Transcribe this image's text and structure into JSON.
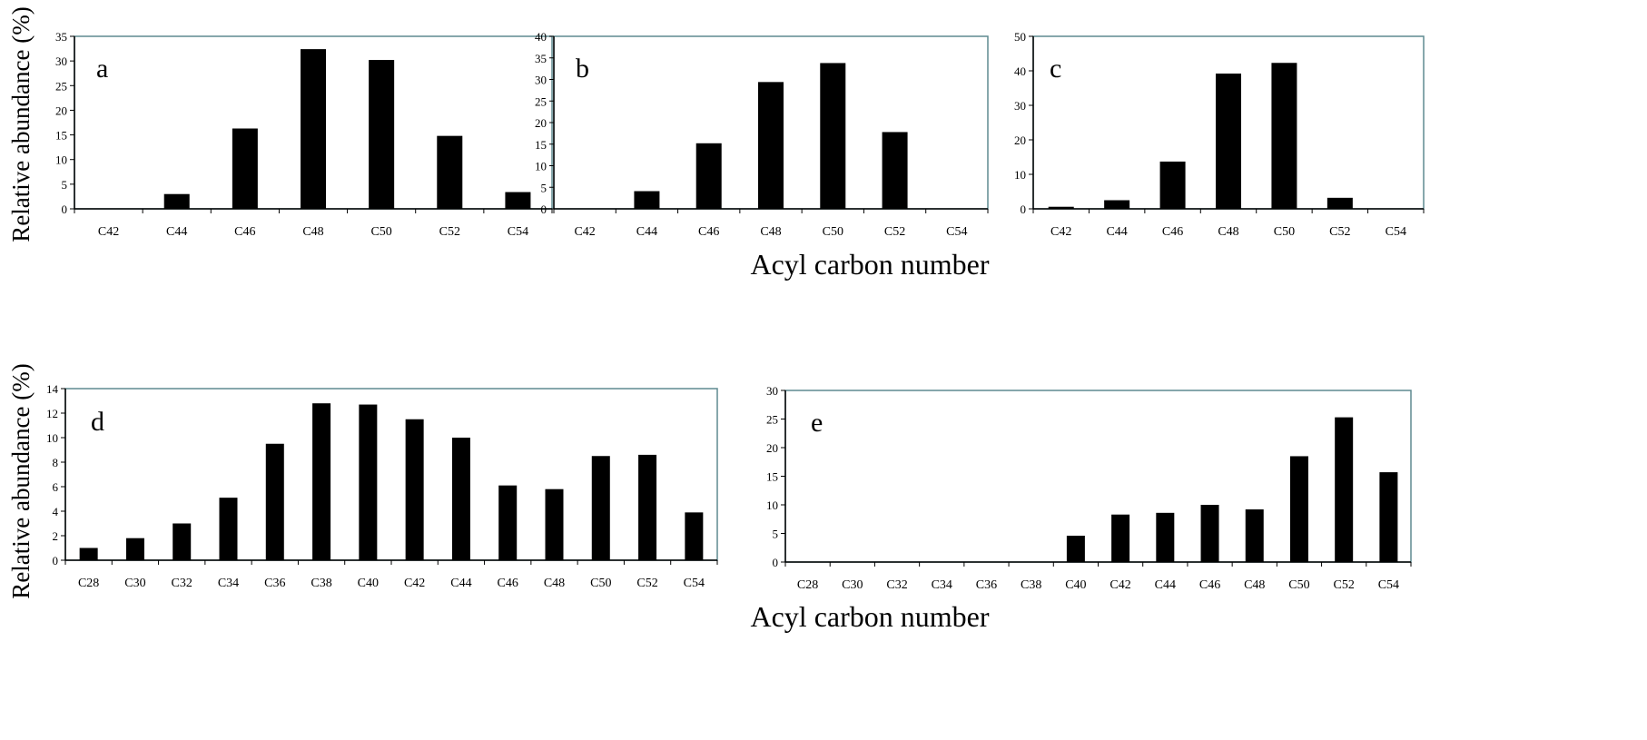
{
  "figure": {
    "ylabel_top": "Relative abundance (%)",
    "ylabel_bottom": "Relative abundance (%)",
    "xlabel_top": "Acyl carbon number",
    "xlabel_bottom": "Acyl carbon number"
  },
  "colors": {
    "bar": "#000000",
    "frame": "#5f8a90",
    "axis": "#000000",
    "background": "#ffffff"
  },
  "chart_data": [
    {
      "type": "bar",
      "panel_label": "a",
      "categories": [
        "C42",
        "C44",
        "C46",
        "C48",
        "C50",
        "C52",
        "C54"
      ],
      "values": [
        0,
        3,
        16.3,
        32.4,
        30.2,
        14.8,
        3.4
      ],
      "ylim": [
        0,
        35
      ],
      "yticks": [
        0,
        5,
        10,
        15,
        20,
        25,
        30,
        35
      ],
      "xlabel": "",
      "ylabel": "Relative abundance (%)",
      "title": "",
      "grid": false
    },
    {
      "type": "bar",
      "panel_label": "b",
      "categories": [
        "C42",
        "C44",
        "C46",
        "C48",
        "C50",
        "C52",
        "C54"
      ],
      "values": [
        0,
        4.1,
        15.2,
        29.4,
        33.8,
        17.8,
        0
      ],
      "ylim": [
        0,
        40
      ],
      "yticks": [
        0,
        5,
        10,
        15,
        20,
        25,
        30,
        35,
        40
      ],
      "xlabel": "Acyl carbon number",
      "ylabel": "",
      "title": "",
      "grid": false
    },
    {
      "type": "bar",
      "panel_label": "c",
      "categories": [
        "C42",
        "C44",
        "C46",
        "C48",
        "C50",
        "C52",
        "C54"
      ],
      "values": [
        0.6,
        2.5,
        13.7,
        39.2,
        42.3,
        3.2,
        0
      ],
      "ylim": [
        0,
        50
      ],
      "yticks": [
        0,
        10,
        20,
        30,
        40,
        50
      ],
      "xlabel": "",
      "ylabel": "",
      "title": "",
      "grid": false
    },
    {
      "type": "bar",
      "panel_label": "d",
      "categories": [
        "C28",
        "C30",
        "C32",
        "C34",
        "C36",
        "C38",
        "C40",
        "C42",
        "C44",
        "C46",
        "C48",
        "C50",
        "C52",
        "C54"
      ],
      "values": [
        1.0,
        1.8,
        3.0,
        5.1,
        9.5,
        12.8,
        12.7,
        11.5,
        10.0,
        6.1,
        5.8,
        8.5,
        8.6,
        3.9
      ],
      "ylim": [
        0,
        14
      ],
      "yticks": [
        0,
        2,
        4,
        6,
        8,
        10,
        12,
        14
      ],
      "xlabel": "",
      "ylabel": "Relative abundance (%)",
      "title": "",
      "grid": false
    },
    {
      "type": "bar",
      "panel_label": "e",
      "categories": [
        "C28",
        "C30",
        "C32",
        "C34",
        "C36",
        "C38",
        "C40",
        "C42",
        "C44",
        "C46",
        "C48",
        "C50",
        "C52",
        "C54"
      ],
      "values": [
        0,
        0,
        0,
        0,
        0,
        0,
        4.6,
        8.3,
        8.6,
        10.0,
        9.2,
        18.5,
        25.3,
        15.7
      ],
      "ylim": [
        0,
        30
      ],
      "yticks": [
        0,
        5,
        10,
        15,
        20,
        25,
        30
      ],
      "xlabel": "",
      "ylabel": "",
      "title": "",
      "grid": false
    }
  ]
}
